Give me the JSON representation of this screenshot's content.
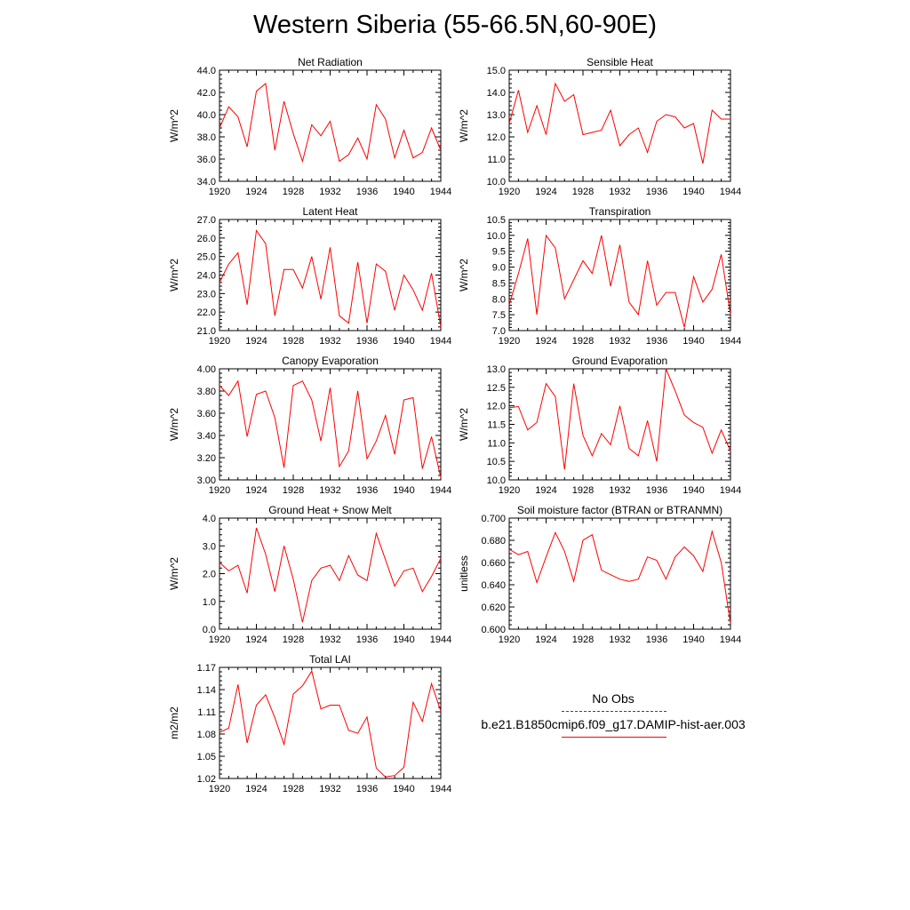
{
  "title": "Western Siberia (55-66.5N,60-90E)",
  "legend": [
    {
      "label": "No Obs",
      "color": "#3333cc",
      "style": "dashed"
    },
    {
      "label": "b.e21.B1850cmip6.f09_g17.DAMIP-hist-aer.003",
      "color": "#ff0000",
      "style": "solid"
    }
  ],
  "chart_data": [
    {
      "type": "line",
      "title": "Net Radiation",
      "ylabel": "W/m^2",
      "ylim": [
        34.0,
        44.0
      ],
      "yticks": [
        "34.0",
        "36.0",
        "38.0",
        "40.0",
        "42.0",
        "44.0"
      ],
      "xlim": [
        1920,
        1944
      ],
      "xticks": [
        "1920",
        "1924",
        "1928",
        "1932",
        "1936",
        "1940",
        "1944"
      ],
      "x": [
        1920,
        1921,
        1922,
        1923,
        1924,
        1925,
        1926,
        1927,
        1928,
        1929,
        1930,
        1931,
        1932,
        1933,
        1934,
        1935,
        1936,
        1937,
        1938,
        1939,
        1940,
        1941,
        1942,
        1943,
        1944
      ],
      "series": [
        {
          "color": "#ff0000",
          "values": [
            38.8,
            40.7,
            39.8,
            37.1,
            42.1,
            42.8,
            36.8,
            41.2,
            38.3,
            35.8,
            39.1,
            38.1,
            39.4,
            35.8,
            36.4,
            37.9,
            36.0,
            40.9,
            39.6,
            36.1,
            38.6,
            36.1,
            36.6,
            38.8,
            36.8
          ]
        }
      ]
    },
    {
      "type": "line",
      "title": "Sensible Heat",
      "ylabel": "W/m^2",
      "ylim": [
        10.0,
        15.0
      ],
      "yticks": [
        "10.0",
        "11.0",
        "12.0",
        "13.0",
        "14.0",
        "15.0"
      ],
      "xlim": [
        1920,
        1944
      ],
      "xticks": [
        "1920",
        "1924",
        "1928",
        "1932",
        "1936",
        "1940",
        "1944"
      ],
      "x": [
        1920,
        1921,
        1922,
        1923,
        1924,
        1925,
        1926,
        1927,
        1928,
        1929,
        1930,
        1931,
        1932,
        1933,
        1934,
        1935,
        1936,
        1937,
        1938,
        1939,
        1940,
        1941,
        1942,
        1943,
        1944
      ],
      "series": [
        {
          "color": "#ff0000",
          "values": [
            12.6,
            14.1,
            12.2,
            13.4,
            12.1,
            14.4,
            13.6,
            13.9,
            12.1,
            12.2,
            12.3,
            13.2,
            11.6,
            12.1,
            12.4,
            11.3,
            12.7,
            13.0,
            12.9,
            12.4,
            12.6,
            10.8,
            13.2,
            12.8,
            12.8
          ]
        }
      ]
    },
    {
      "type": "line",
      "title": "Latent Heat",
      "ylabel": "W/m^2",
      "ylim": [
        21.0,
        27.0
      ],
      "yticks": [
        "21.0",
        "22.0",
        "23.0",
        "24.0",
        "25.0",
        "26.0",
        "27.0"
      ],
      "xlim": [
        1920,
        1944
      ],
      "xticks": [
        "1920",
        "1924",
        "1928",
        "1932",
        "1936",
        "1940",
        "1944"
      ],
      "x": [
        1920,
        1921,
        1922,
        1923,
        1924,
        1925,
        1926,
        1927,
        1928,
        1929,
        1930,
        1931,
        1932,
        1933,
        1934,
        1935,
        1936,
        1937,
        1938,
        1939,
        1940,
        1941,
        1942,
        1943,
        1944
      ],
      "series": [
        {
          "color": "#ff0000",
          "values": [
            23.6,
            24.6,
            25.2,
            22.4,
            26.4,
            25.7,
            21.8,
            24.3,
            24.3,
            23.3,
            25.0,
            22.7,
            25.5,
            21.8,
            21.4,
            24.7,
            21.4,
            24.6,
            24.2,
            22.1,
            24.0,
            23.2,
            22.1,
            24.1,
            21.2
          ]
        }
      ]
    },
    {
      "type": "line",
      "title": "Transpiration",
      "ylabel": "W/m^2",
      "ylim": [
        7.0,
        10.5
      ],
      "yticks": [
        "7.0",
        "7.5",
        "8.0",
        "8.5",
        "9.0",
        "9.5",
        "10.0",
        "10.5"
      ],
      "xlim": [
        1920,
        1944
      ],
      "xticks": [
        "1920",
        "1924",
        "1928",
        "1932",
        "1936",
        "1940",
        "1944"
      ],
      "x": [
        1920,
        1921,
        1922,
        1923,
        1924,
        1925,
        1926,
        1927,
        1928,
        1929,
        1930,
        1931,
        1932,
        1933,
        1934,
        1935,
        1936,
        1937,
        1938,
        1939,
        1940,
        1941,
        1942,
        1943,
        1944
      ],
      "series": [
        {
          "color": "#ff0000",
          "values": [
            7.8,
            8.8,
            9.9,
            7.5,
            10.0,
            9.6,
            8.0,
            8.6,
            9.2,
            8.8,
            10.0,
            8.4,
            9.7,
            7.9,
            7.5,
            9.2,
            7.8,
            8.2,
            8.2,
            7.1,
            8.7,
            7.9,
            8.3,
            9.4,
            7.5
          ]
        }
      ]
    },
    {
      "type": "line",
      "title": "Canopy Evaporation",
      "ylabel": "W/m^2",
      "ylim": [
        3.0,
        4.0
      ],
      "yticks": [
        "3.00",
        "3.20",
        "3.40",
        "3.60",
        "3.80",
        "4.00"
      ],
      "xlim": [
        1920,
        1944
      ],
      "xticks": [
        "1920",
        "1924",
        "1928",
        "1932",
        "1936",
        "1940",
        "1944"
      ],
      "x": [
        1920,
        1921,
        1922,
        1923,
        1924,
        1925,
        1926,
        1927,
        1928,
        1929,
        1930,
        1931,
        1932,
        1933,
        1934,
        1935,
        1936,
        1937,
        1938,
        1939,
        1940,
        1941,
        1942,
        1943,
        1944
      ],
      "series": [
        {
          "color": "#ff0000",
          "values": [
            3.85,
            3.76,
            3.89,
            3.39,
            3.77,
            3.8,
            3.56,
            3.11,
            3.85,
            3.89,
            3.72,
            3.35,
            3.83,
            3.12,
            3.26,
            3.8,
            3.19,
            3.35,
            3.58,
            3.23,
            3.72,
            3.74,
            3.1,
            3.39,
            3.02
          ]
        }
      ]
    },
    {
      "type": "line",
      "title": "Ground Evaporation",
      "ylabel": "W/m^2",
      "ylim": [
        10.0,
        13.0
      ],
      "yticks": [
        "10.0",
        "10.5",
        "11.0",
        "11.5",
        "12.0",
        "12.5",
        "13.0"
      ],
      "xlim": [
        1920,
        1944
      ],
      "xticks": [
        "1920",
        "1924",
        "1928",
        "1932",
        "1936",
        "1940",
        "1944"
      ],
      "x": [
        1920,
        1921,
        1922,
        1923,
        1924,
        1925,
        1926,
        1927,
        1928,
        1929,
        1930,
        1931,
        1932,
        1933,
        1934,
        1935,
        1936,
        1937,
        1938,
        1939,
        1940,
        1941,
        1942,
        1943,
        1944
      ],
      "series": [
        {
          "color": "#ff0000",
          "values": [
            11.95,
            11.98,
            11.35,
            11.55,
            12.6,
            12.25,
            10.28,
            12.6,
            11.2,
            10.65,
            11.25,
            10.95,
            12.0,
            10.85,
            10.65,
            11.6,
            10.5,
            13.0,
            12.4,
            11.75,
            11.55,
            11.42,
            10.72,
            11.35,
            10.78
          ]
        }
      ]
    },
    {
      "type": "line",
      "title": "Ground Heat + Snow Melt",
      "ylabel": "W/m^2",
      "ylim": [
        0.0,
        4.0
      ],
      "yticks": [
        "0.0",
        "1.0",
        "2.0",
        "3.0",
        "4.0"
      ],
      "xlim": [
        1920,
        1944
      ],
      "xticks": [
        "1920",
        "1924",
        "1928",
        "1932",
        "1936",
        "1940",
        "1944"
      ],
      "x": [
        1920,
        1921,
        1922,
        1923,
        1924,
        1925,
        1926,
        1927,
        1928,
        1929,
        1930,
        1931,
        1932,
        1933,
        1934,
        1935,
        1936,
        1937,
        1938,
        1939,
        1940,
        1941,
        1942,
        1943,
        1944
      ],
      "series": [
        {
          "color": "#ff0000",
          "values": [
            2.4,
            2.1,
            2.3,
            1.3,
            3.65,
            2.7,
            1.35,
            3.0,
            1.8,
            0.25,
            1.75,
            2.2,
            2.3,
            1.75,
            2.65,
            1.95,
            1.75,
            3.45,
            2.5,
            1.55,
            2.1,
            2.2,
            1.35,
            1.9,
            2.55
          ]
        }
      ]
    },
    {
      "type": "line",
      "title": "Soil moisture factor (BTRAN or BTRANMN)",
      "ylabel": "unitless",
      "ylim": [
        0.6,
        0.7
      ],
      "yticks": [
        "0.600",
        "0.620",
        "0.640",
        "0.660",
        "0.680",
        "0.700"
      ],
      "xlim": [
        1920,
        1944
      ],
      "xticks": [
        "1920",
        "1924",
        "1928",
        "1932",
        "1936",
        "1940",
        "1944"
      ],
      "x": [
        1920,
        1921,
        1922,
        1923,
        1924,
        1925,
        1926,
        1927,
        1928,
        1929,
        1930,
        1931,
        1932,
        1933,
        1934,
        1935,
        1936,
        1937,
        1938,
        1939,
        1940,
        1941,
        1942,
        1943,
        1944
      ],
      "series": [
        {
          "color": "#ff0000",
          "values": [
            0.672,
            0.667,
            0.67,
            0.642,
            0.665,
            0.687,
            0.67,
            0.643,
            0.68,
            0.685,
            0.653,
            0.649,
            0.645,
            0.643,
            0.645,
            0.665,
            0.662,
            0.645,
            0.665,
            0.674,
            0.666,
            0.652,
            0.688,
            0.66,
            0.605
          ]
        }
      ]
    },
    {
      "type": "line",
      "title": "Total LAI",
      "ylabel": "m2/m2",
      "ylim": [
        1.02,
        1.17
      ],
      "yticks": [
        "1.02",
        "1.05",
        "1.08",
        "1.11",
        "1.14",
        "1.17"
      ],
      "xlim": [
        1920,
        1944
      ],
      "xticks": [
        "1920",
        "1924",
        "1928",
        "1932",
        "1936",
        "1940",
        "1944"
      ],
      "x": [
        1920,
        1921,
        1922,
        1923,
        1924,
        1925,
        1926,
        1927,
        1928,
        1929,
        1930,
        1931,
        1932,
        1933,
        1934,
        1935,
        1936,
        1937,
        1938,
        1939,
        1940,
        1941,
        1942,
        1943,
        1944
      ],
      "series": [
        {
          "color": "#ff0000",
          "values": [
            1.082,
            1.088,
            1.147,
            1.068,
            1.119,
            1.133,
            1.102,
            1.066,
            1.134,
            1.145,
            1.165,
            1.114,
            1.119,
            1.119,
            1.085,
            1.081,
            1.103,
            1.034,
            1.022,
            1.024,
            1.035,
            1.123,
            1.097,
            1.148,
            1.111
          ]
        }
      ]
    }
  ]
}
